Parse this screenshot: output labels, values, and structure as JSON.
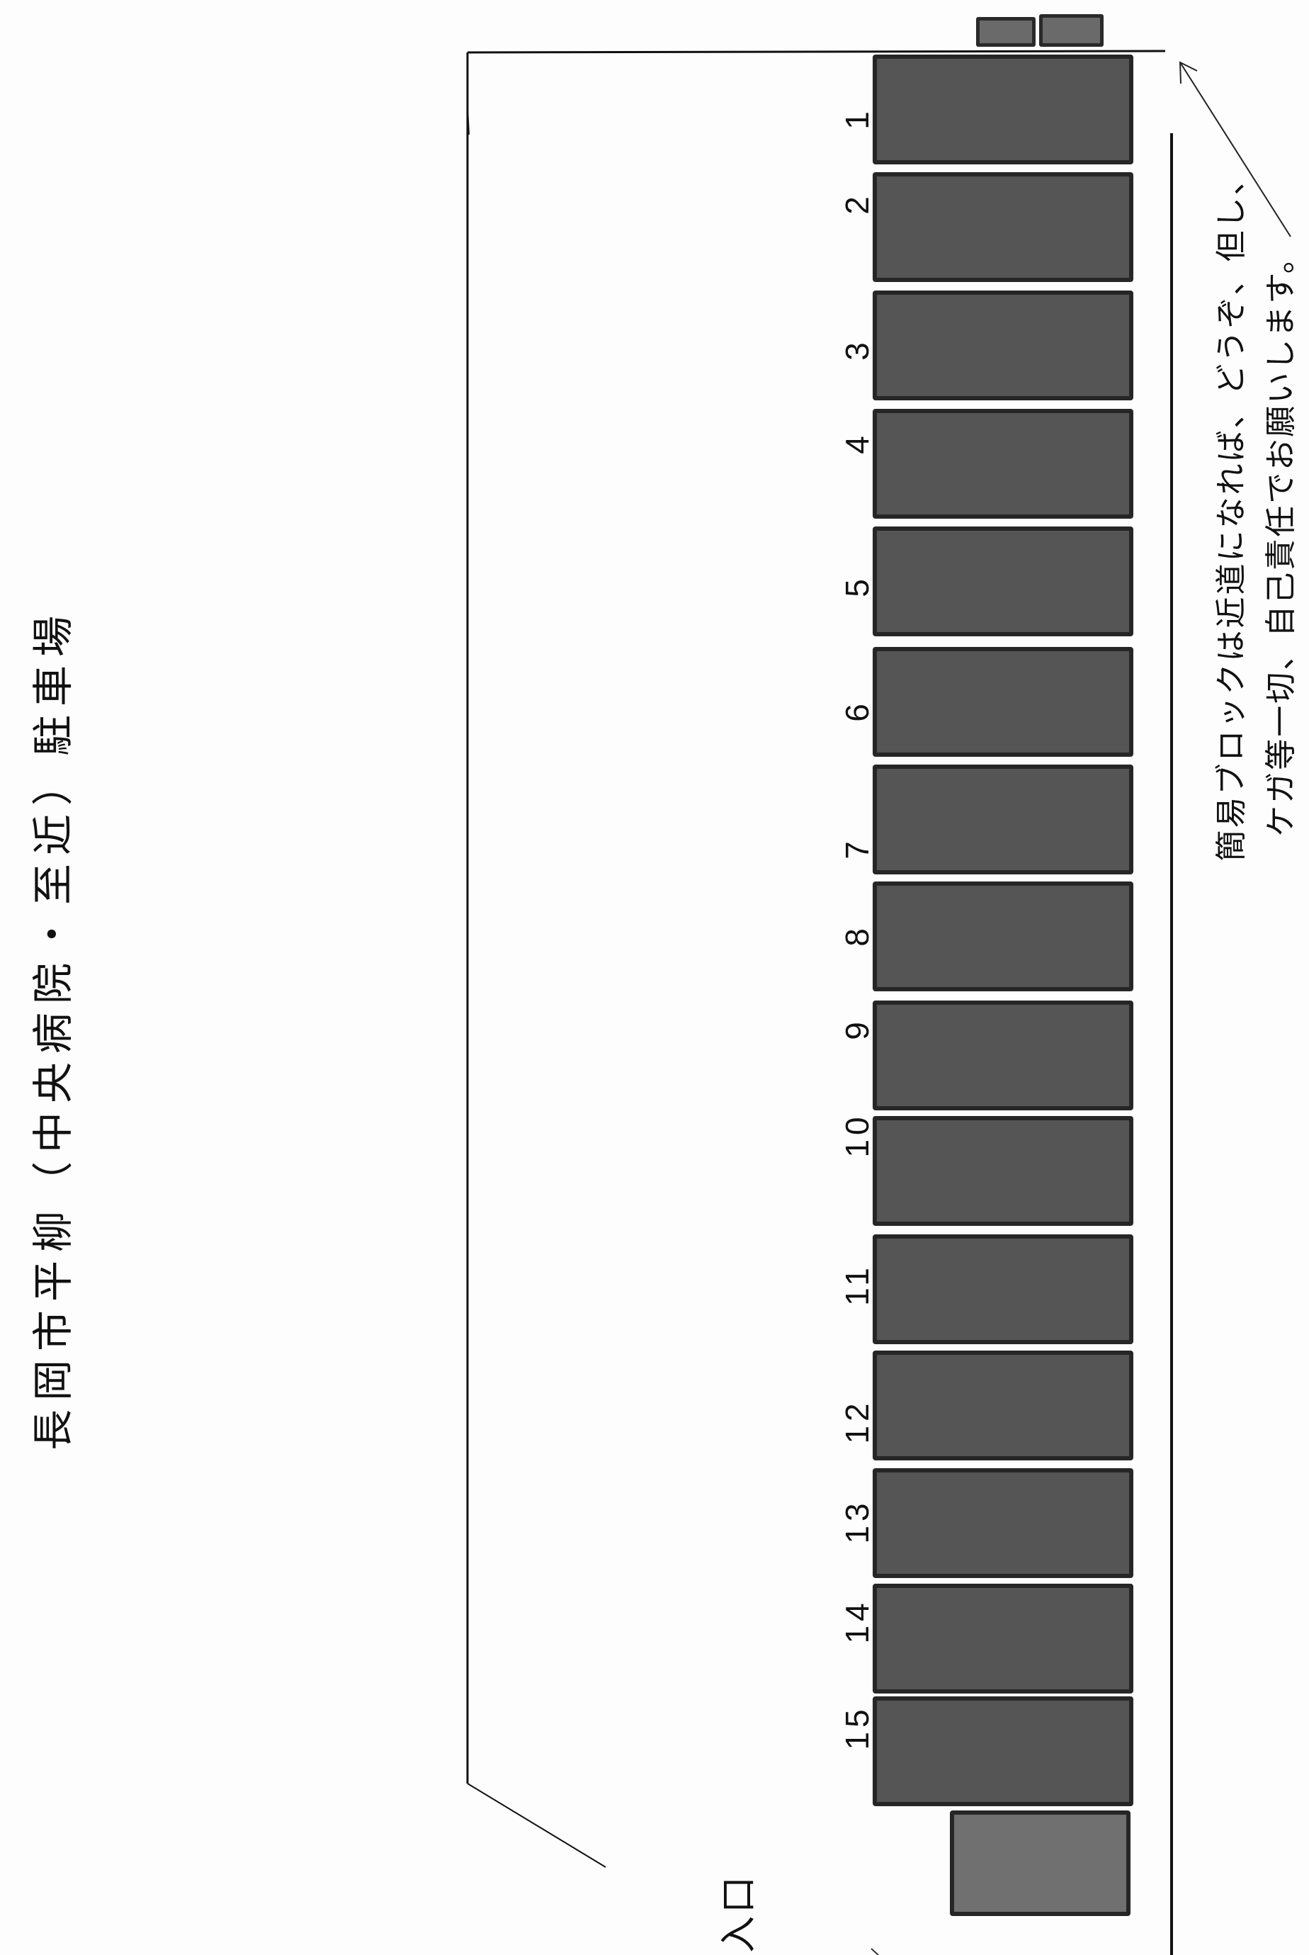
{
  "title": "長岡市平柳（中央病院・至近）駐車場",
  "slots": [
    "1",
    "2",
    "3",
    "4",
    "5",
    "6",
    "7",
    "8",
    "9",
    "10",
    "11",
    "12",
    "13",
    "14",
    "15"
  ],
  "entrance_label": "入口",
  "note": {
    "line1": "簡易ブロックは近道になれば、どうぞ、但し、",
    "line2": "ケガ等一切、自己責任でお願いします。"
  },
  "colors": {
    "slot_fill": "#555555",
    "slot_border": "#262626",
    "line": "#111111"
  }
}
